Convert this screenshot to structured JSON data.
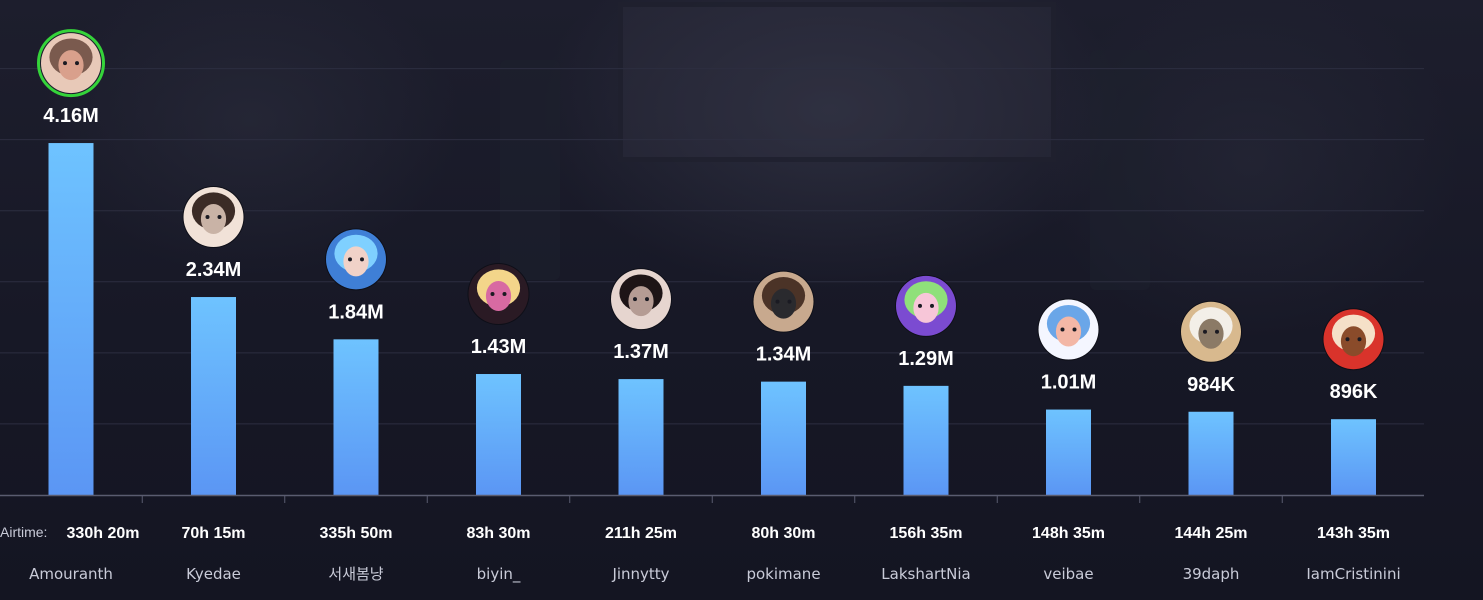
{
  "chart_data": {
    "type": "bar",
    "categories": [
      "Amouranth",
      "Kyedae",
      "서새봄냥",
      "biyin_",
      "Jinnytty",
      "pokimane",
      "LakshartNia",
      "veibae",
      "39daph",
      "IamCristinini"
    ],
    "values": [
      4160000,
      2340000,
      1840000,
      1430000,
      1370000,
      1340000,
      1290000,
      1010000,
      984000,
      896000
    ],
    "value_labels": [
      "4.16M",
      "2.34M",
      "1.84M",
      "1.43M",
      "1.37M",
      "1.34M",
      "1.29M",
      "1.01M",
      "984K",
      "896K"
    ],
    "airtime_prefix": "Airtime:",
    "airtime": [
      "330h 20m",
      "70h 15m",
      "335h 50m",
      "83h 30m",
      "211h 25m",
      "80h 30m",
      "156h 35m",
      "148h 35m",
      "144h 25m",
      "143h 35m"
    ],
    "title": "",
    "xlabel": "",
    "ylabel": "",
    "ylim": [
      0,
      5000000
    ],
    "grid": true,
    "legend": "none",
    "avatar_icons": [
      "avatar-icon",
      "avatar-icon",
      "avatar-icon",
      "avatar-icon",
      "avatar-icon",
      "avatar-icon",
      "avatar-icon",
      "avatar-icon",
      "avatar-icon",
      "avatar-icon"
    ],
    "highlighted_index": 0
  },
  "colors": {
    "bar_top": "#6ec3ff",
    "bar_bottom": "#5b96f4",
    "grid": "#2c2e40",
    "axis": "#5a5c70",
    "highlight_ring": "#35d43a",
    "label": "#ffffff",
    "name": "#c9cbd8",
    "avatar_palettes": [
      [
        "#e8c9b8",
        "#7a5a4e",
        "#d9a08c"
      ],
      [
        "#f1e2d8",
        "#3b2b26",
        "#c9b3a6"
      ],
      [
        "#3f7fd6",
        "#7fd0ff",
        "#f0d2c8"
      ],
      [
        "#2a1a24",
        "#f3d58a",
        "#d86aa2"
      ],
      [
        "#e6d5cf",
        "#1d1416",
        "#b59c94"
      ],
      [
        "#c8a98e",
        "#4b3327",
        "#2a2a2e"
      ],
      [
        "#7b4bd1",
        "#8fe07a",
        "#f7c6d8"
      ],
      [
        "#f4f6ff",
        "#6aa6e8",
        "#f3b7a6"
      ],
      [
        "#d8b98e",
        "#f3efe8",
        "#8b7a66"
      ],
      [
        "#d9332b",
        "#f5e0c8",
        "#8a4b2a"
      ]
    ]
  }
}
